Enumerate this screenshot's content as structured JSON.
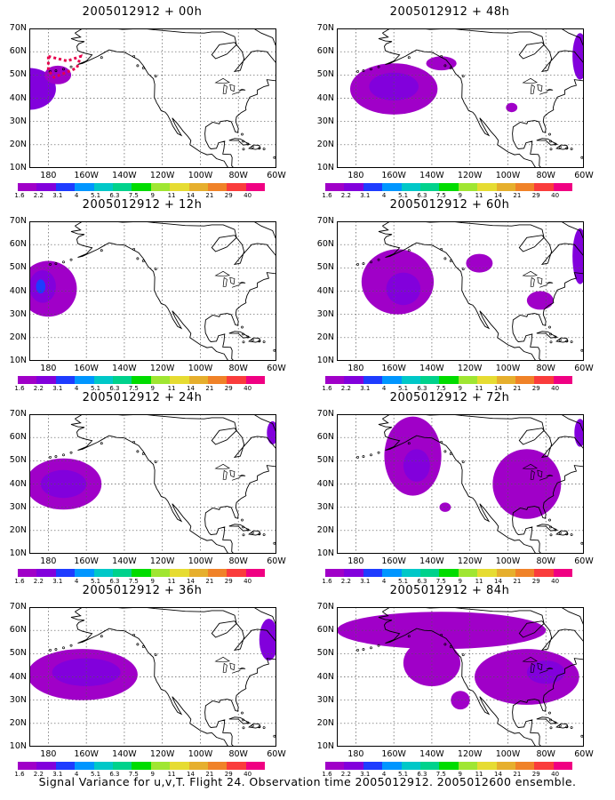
{
  "colorbar": {
    "levels": [
      "1.6",
      "2.2",
      "3.1",
      "4",
      "5.1",
      "6.3",
      "7.5",
      "9",
      "11",
      "14",
      "21",
      "29",
      "40"
    ],
    "colors": [
      "#a000c8",
      "#8200dc",
      "#1e3cff",
      "#0096ff",
      "#00c8c8",
      "#00d28c",
      "#00dc00",
      "#a0e632",
      "#e6dc32",
      "#e6af2d",
      "#f08228",
      "#fa3c3c",
      "#f00082"
    ]
  },
  "axes": {
    "lat_labels": [
      "70N",
      "60N",
      "50N",
      "40N",
      "30N",
      "20N",
      "10N"
    ],
    "lon_labels": [
      "180",
      "160W",
      "140W",
      "120W",
      "100W",
      "80W",
      "60W"
    ],
    "lat_range": [
      10,
      70
    ],
    "lon_range": [
      -190,
      -60
    ]
  },
  "panels": [
    {
      "title": "2005012912 + 00h",
      "blobs": [
        {
          "lon": -190,
          "lat": 44,
          "w": 28,
          "h": 18,
          "fill": "#8200dc"
        },
        {
          "lon": -175,
          "lat": 50,
          "w": 14,
          "h": 8,
          "fill": "#a000c8"
        }
      ],
      "track": [
        [
          -180,
          58
        ],
        [
          -170,
          56
        ],
        [
          -163,
          58
        ],
        [
          -165,
          53
        ],
        [
          -177,
          49
        ],
        [
          -180,
          52
        ],
        [
          -180,
          58
        ]
      ]
    },
    {
      "title": "2005012912 + 48h",
      "blobs": [
        {
          "lon": -160,
          "lat": 44,
          "w": 46,
          "h": 22,
          "fill": "#a000c8"
        },
        {
          "lon": -160,
          "lat": 45,
          "w": 26,
          "h": 12,
          "fill": "#8200dc"
        },
        {
          "lon": -135,
          "lat": 55,
          "w": 16,
          "h": 6,
          "fill": "#a000c8"
        },
        {
          "lon": -98,
          "lat": 36,
          "w": 6,
          "h": 4,
          "fill": "#a000c8"
        },
        {
          "lon": -62,
          "lat": 58,
          "w": 8,
          "h": 20,
          "fill": "#8200dc"
        }
      ]
    },
    {
      "title": "2005012912 + 12h",
      "blobs": [
        {
          "lon": -180,
          "lat": 41,
          "w": 30,
          "h": 24,
          "fill": "#a000c8"
        },
        {
          "lon": -183,
          "lat": 42,
          "w": 14,
          "h": 14,
          "fill": "#8200dc"
        },
        {
          "lon": -184,
          "lat": 42,
          "w": 5,
          "h": 6,
          "fill": "#1e3cff"
        }
      ]
    },
    {
      "title": "2005012912 + 60h",
      "blobs": [
        {
          "lon": -158,
          "lat": 44,
          "w": 38,
          "h": 28,
          "fill": "#a000c8"
        },
        {
          "lon": -155,
          "lat": 41,
          "w": 18,
          "h": 14,
          "fill": "#8200dc"
        },
        {
          "lon": -115,
          "lat": 52,
          "w": 14,
          "h": 8,
          "fill": "#a000c8"
        },
        {
          "lon": -83,
          "lat": 36,
          "w": 14,
          "h": 8,
          "fill": "#a000c8"
        },
        {
          "lon": -62,
          "lat": 55,
          "w": 8,
          "h": 24,
          "fill": "#8200dc"
        }
      ]
    },
    {
      "title": "2005012912 + 24h",
      "blobs": [
        {
          "lon": -172,
          "lat": 40,
          "w": 40,
          "h": 22,
          "fill": "#a000c8"
        },
        {
          "lon": -172,
          "lat": 40,
          "w": 24,
          "h": 12,
          "fill": "#8200dc"
        },
        {
          "lon": -62,
          "lat": 62,
          "w": 6,
          "h": 10,
          "fill": "#8200dc"
        }
      ]
    },
    {
      "title": "2005012912 + 72h",
      "blobs": [
        {
          "lon": -150,
          "lat": 52,
          "w": 30,
          "h": 34,
          "fill": "#a000c8"
        },
        {
          "lon": -148,
          "lat": 48,
          "w": 14,
          "h": 14,
          "fill": "#8200dc"
        },
        {
          "lon": -90,
          "lat": 40,
          "w": 36,
          "h": 30,
          "fill": "#a000c8"
        },
        {
          "lon": -133,
          "lat": 30,
          "w": 6,
          "h": 4,
          "fill": "#a000c8"
        },
        {
          "lon": -62,
          "lat": 62,
          "w": 6,
          "h": 12,
          "fill": "#8200dc"
        }
      ]
    },
    {
      "title": "2005012912 + 36h",
      "blobs": [
        {
          "lon": -162,
          "lat": 41,
          "w": 58,
          "h": 22,
          "fill": "#a000c8"
        },
        {
          "lon": -160,
          "lat": 42,
          "w": 36,
          "h": 12,
          "fill": "#8200dc"
        },
        {
          "lon": -64,
          "lat": 56,
          "w": 10,
          "h": 18,
          "fill": "#8200dc"
        }
      ]
    },
    {
      "title": "2005012912 + 84h",
      "blobs": [
        {
          "lon": -135,
          "lat": 60,
          "w": 110,
          "h": 16,
          "fill": "#a000c8"
        },
        {
          "lon": -140,
          "lat": 46,
          "w": 30,
          "h": 20,
          "fill": "#a000c8"
        },
        {
          "lon": -90,
          "lat": 40,
          "w": 55,
          "h": 24,
          "fill": "#a000c8"
        },
        {
          "lon": -80,
          "lat": 42,
          "w": 20,
          "h": 10,
          "fill": "#8200dc"
        },
        {
          "lon": -125,
          "lat": 30,
          "w": 10,
          "h": 8,
          "fill": "#a000c8"
        }
      ]
    }
  ],
  "caption": "Signal Variance for u,v,T. Flight 24. Observation time 2005012912. 2005012600 ensemble."
}
